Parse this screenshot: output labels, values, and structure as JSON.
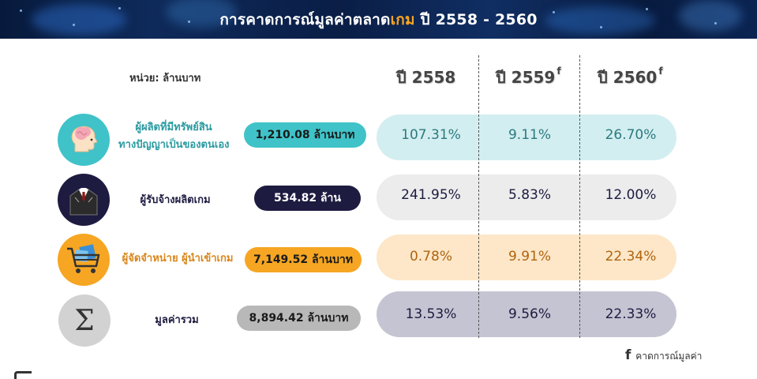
{
  "banner": {
    "title_before": "การคาดการณ์มูลค่าตลาด",
    "title_highlight": "เกม",
    "title_after": " ปี 2558 - 2560"
  },
  "colors": {
    "banner_bg": "#0b2452",
    "highlight": "#f6a623",
    "teal": "#3fc3c8",
    "navy": "#1a1a40",
    "orange": "#f6a623",
    "gray": "#b8b8b8"
  },
  "header": {
    "unit_label": "หน่วย: ล้านบาท",
    "years": [
      {
        "label": "ปี 2558",
        "forecast_mark": ""
      },
      {
        "label": "ปี 2559",
        "forecast_mark": "f"
      },
      {
        "label": "ปี 2560",
        "forecast_mark": "f"
      }
    ]
  },
  "rows": [
    {
      "icon": "brain-head-icon",
      "label_line1": "ผู้ผลิตที่มีทรัพย์สิน",
      "label_line2": "ทางปัญญาเป็นของตนเอง",
      "value": "1,210.08 ล้านบาท",
      "growth": [
        "107.31%",
        "9.11%",
        "26.70%"
      ]
    },
    {
      "icon": "businessman-suit-icon",
      "label_line1": "ผู้รับจ้างผลิตเกม",
      "label_line2": "",
      "value": "534.82 ล้าน",
      "growth": [
        "241.95%",
        "5.83%",
        "12.00%"
      ]
    },
    {
      "icon": "shopping-cart-icon",
      "label_line1": "ผู้จัดจำหน่าย ผู้นำเข้าเกม",
      "label_line2": "",
      "value": "7,149.52 ล้านบาท",
      "growth": [
        "0.78%",
        "9.91%",
        "22.34%"
      ]
    },
    {
      "icon": "sigma-sum-icon",
      "icon_glyph": "Σ",
      "label_line1": "มูลค่ารวม",
      "label_line2": "",
      "value": "8,894.42 ล้านบาท",
      "growth": [
        "13.53%",
        "9.56%",
        "22.33%"
      ]
    }
  ],
  "footnote": {
    "mark": "f",
    "text": "คาดการณ์มูลค่า"
  }
}
